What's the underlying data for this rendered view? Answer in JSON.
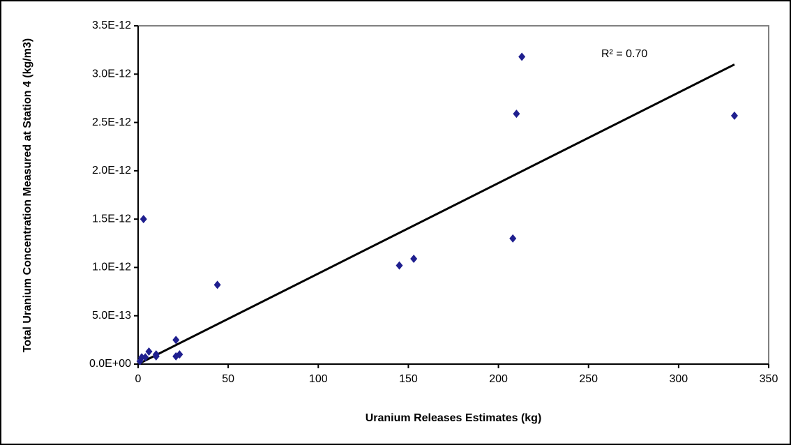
{
  "chart_data": {
    "type": "scatter",
    "x_label": "Uranium Releases Estimates (kg)",
    "y_label": "Total Uranium Concentration Measured at Station 4 (kg/m3)",
    "annotation": "R² = 0.70",
    "color": "#1f1f8f",
    "x": [
      213,
      210,
      331,
      208,
      153,
      145,
      44,
      3,
      21,
      6,
      10,
      10,
      21,
      23,
      2,
      4,
      1
    ],
    "y": [
      3.18e-12,
      2.59e-12,
      2.57e-12,
      1.3e-12,
      1.09e-12,
      1.02e-12,
      8.2e-13,
      1.5e-12,
      2.5e-13,
      1.3e-13,
      1e-13,
      8e-14,
      8e-14,
      1e-13,
      7e-14,
      7e-14,
      3e-14
    ],
    "trendline": {
      "x": [
        0,
        331
      ],
      "y": [
        0,
        3.1e-12
      ]
    },
    "xlim": [
      0,
      350
    ],
    "xticks": [
      0,
      50,
      100,
      150,
      200,
      250,
      300,
      350
    ],
    "ylim": [
      0,
      3.5e-12
    ],
    "yticks": [
      {
        "value": 0,
        "label": "0.0E+00"
      },
      {
        "value": 5e-13,
        "label": "5.0E-13"
      },
      {
        "value": 1e-12,
        "label": "1.0E-12"
      },
      {
        "value": 1.5e-12,
        "label": "1.5E-12"
      },
      {
        "value": 2e-12,
        "label": "2.0E-12"
      },
      {
        "value": 2.5e-12,
        "label": "2.5E-12"
      },
      {
        "value": 3e-12,
        "label": "3.0E-12"
      },
      {
        "value": 3.5e-12,
        "label": "3.5E-12"
      }
    ]
  }
}
